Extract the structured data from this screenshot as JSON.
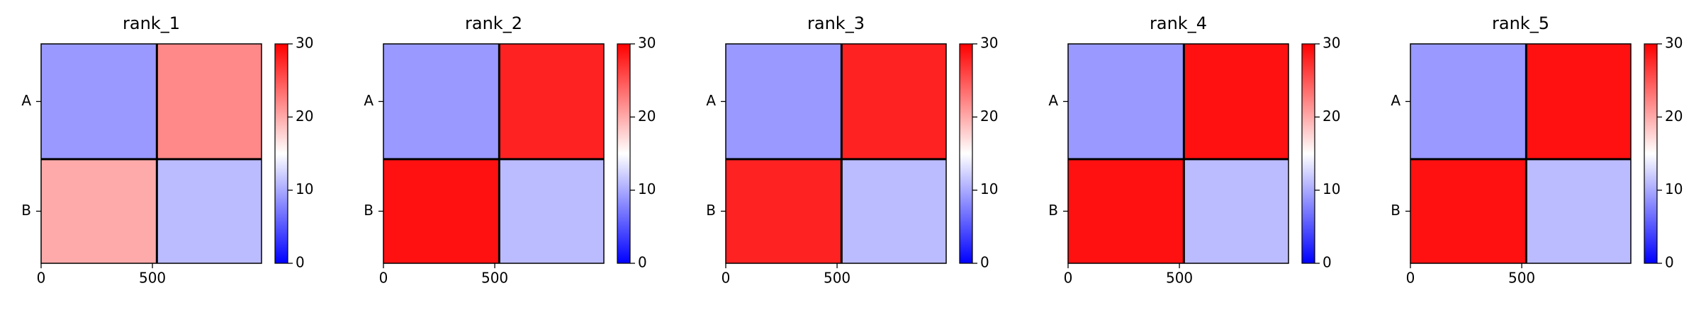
{
  "chart_data": [
    {
      "type": "heatmap",
      "title": "rank_1",
      "chains": [
        {
          "label": "A",
          "start": 0,
          "end": 520
        },
        {
          "label": "B",
          "start": 520,
          "end": 990
        }
      ],
      "values": [
        [
          9,
          22
        ],
        [
          20,
          11
        ]
      ],
      "xlim": [
        0,
        990
      ],
      "ylim": [
        990,
        0
      ],
      "xticks": [
        0,
        500
      ],
      "clim": [
        0,
        30
      ],
      "cticks": [
        0,
        10,
        20,
        30
      ],
      "colormap": [
        "#0000ff",
        "#ffffff",
        "#ff0000"
      ]
    },
    {
      "type": "heatmap",
      "title": "rank_2",
      "chains": [
        {
          "label": "A",
          "start": 0,
          "end": 520
        },
        {
          "label": "B",
          "start": 520,
          "end": 990
        }
      ],
      "values": [
        [
          9,
          28
        ],
        [
          29,
          11
        ]
      ],
      "xlim": [
        0,
        990
      ],
      "ylim": [
        990,
        0
      ],
      "xticks": [
        0,
        500
      ],
      "clim": [
        0,
        30
      ],
      "cticks": [
        0,
        10,
        20,
        30
      ],
      "colormap": [
        "#0000ff",
        "#ffffff",
        "#ff0000"
      ]
    },
    {
      "type": "heatmap",
      "title": "rank_3",
      "chains": [
        {
          "label": "A",
          "start": 0,
          "end": 520
        },
        {
          "label": "B",
          "start": 520,
          "end": 990
        }
      ],
      "values": [
        [
          9,
          28
        ],
        [
          28,
          11
        ]
      ],
      "xlim": [
        0,
        990
      ],
      "ylim": [
        990,
        0
      ],
      "xticks": [
        0,
        500
      ],
      "clim": [
        0,
        30
      ],
      "cticks": [
        0,
        10,
        20,
        30
      ],
      "colormap": [
        "#0000ff",
        "#ffffff",
        "#ff0000"
      ]
    },
    {
      "type": "heatmap",
      "title": "rank_4",
      "chains": [
        {
          "label": "A",
          "start": 0,
          "end": 520
        },
        {
          "label": "B",
          "start": 520,
          "end": 990
        }
      ],
      "values": [
        [
          9,
          29
        ],
        [
          29,
          11
        ]
      ],
      "xlim": [
        0,
        990
      ],
      "ylim": [
        990,
        0
      ],
      "xticks": [
        0,
        500
      ],
      "clim": [
        0,
        30
      ],
      "cticks": [
        0,
        10,
        20,
        30
      ],
      "colormap": [
        "#0000ff",
        "#ffffff",
        "#ff0000"
      ]
    },
    {
      "type": "heatmap",
      "title": "rank_5",
      "chains": [
        {
          "label": "A",
          "start": 0,
          "end": 520
        },
        {
          "label": "B",
          "start": 520,
          "end": 990
        }
      ],
      "values": [
        [
          9,
          29
        ],
        [
          29,
          11
        ]
      ],
      "xlim": [
        0,
        990
      ],
      "ylim": [
        990,
        0
      ],
      "xticks": [
        0,
        500
      ],
      "clim": [
        0,
        30
      ],
      "cticks": [
        0,
        10,
        20,
        30
      ],
      "colormap": [
        "#0000ff",
        "#ffffff",
        "#ff0000"
      ]
    }
  ]
}
